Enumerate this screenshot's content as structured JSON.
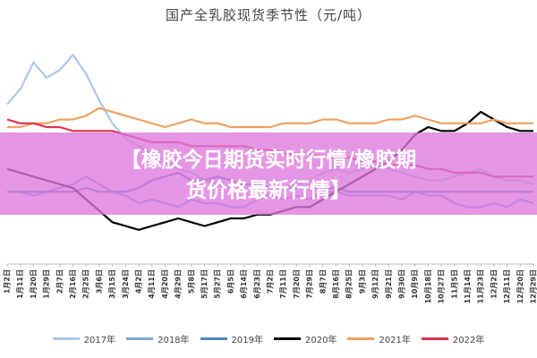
{
  "chart_data": {
    "type": "line",
    "title": "国产全乳胶现货季节性（元/吨）",
    "ylim": [
      10000,
      16000
    ],
    "x_ticks": [
      "1月2日",
      "1月11日",
      "1月20日",
      "1月29日",
      "2月7日",
      "2月16日",
      "2月25日",
      "3月6日",
      "3月15日",
      "3月24日",
      "4月2日",
      "4月11日",
      "4月20日",
      "4月29日",
      "5月8日",
      "5月17日",
      "5月27日",
      "6月5日",
      "6月14日",
      "6月23日",
      "7月2日",
      "7月11日",
      "7月20日",
      "7月29日",
      "8月7日",
      "8月16日",
      "8月25日",
      "9月3日",
      "9月12日",
      "9月21日",
      "9月30日",
      "10月9日",
      "10月18日",
      "10月27日",
      "11月5日",
      "11月14日",
      "11月23日",
      "12月2日",
      "12月11日",
      "12月20日",
      "12月29日"
    ],
    "series": [
      {
        "name": "2017年",
        "color": "#aec7e8",
        "values": [
          14200,
          14600,
          15300,
          14900,
          15100,
          15500,
          15000,
          14300,
          13700,
          13300,
          13100,
          12900,
          12700,
          12500,
          12400,
          12200,
          12100,
          12000,
          12100,
          12100,
          12000,
          12000,
          12100,
          12200,
          12400,
          12500,
          12400,
          12500,
          12600,
          12500,
          12400,
          12300,
          12200,
          12200,
          12300,
          12400,
          12500,
          12300,
          12200,
          12200,
          12100
        ]
      },
      {
        "name": "2018年",
        "color": "#7da7d9",
        "values": [
          11900,
          11900,
          11800,
          11900,
          12000,
          12100,
          12300,
          12100,
          11900,
          11800,
          11600,
          11700,
          11600,
          11500,
          11700,
          11600,
          11600,
          11500,
          11500,
          11700,
          11800,
          11700,
          11800,
          11700,
          11900,
          11900,
          11800,
          11800,
          11800,
          11800,
          11700,
          11900,
          11800,
          11800,
          11600,
          11500,
          11500,
          11600,
          11500,
          11700,
          11600
        ]
      },
      {
        "name": "2019年",
        "color": "#4e86c2",
        "values": [
          11900,
          11900,
          11900,
          11900,
          11900,
          11900,
          12000,
          11900,
          11900,
          11900,
          12000,
          12200,
          12300,
          12400,
          12200,
          12200,
          12300,
          12200,
          12100,
          12100,
          12000,
          12000,
          12000,
          12000,
          12000,
          12000,
          11900,
          11900,
          11900,
          11900,
          11900,
          11900,
          11900,
          11900,
          11900,
          11900,
          11900,
          11900,
          11900,
          11900,
          11900
        ]
      },
      {
        "name": "2020年",
        "color": "#000000",
        "values": [
          12500,
          12400,
          12300,
          12200,
          12100,
          12000,
          11700,
          11400,
          11100,
          11000,
          10900,
          11000,
          11100,
          11200,
          11100,
          11000,
          11100,
          11200,
          11200,
          11300,
          11300,
          11400,
          11500,
          11500,
          11700,
          11900,
          12100,
          12300,
          12500,
          12700,
          13000,
          13400,
          13600,
          13500,
          13500,
          13700,
          14000,
          13800,
          13600,
          13500,
          13500
        ]
      },
      {
        "name": "2021年",
        "color": "#f0a060",
        "values": [
          13600,
          13600,
          13700,
          13700,
          13800,
          13800,
          13900,
          14100,
          14000,
          13900,
          13800,
          13700,
          13600,
          13700,
          13800,
          13700,
          13700,
          13600,
          13600,
          13600,
          13600,
          13700,
          13700,
          13700,
          13800,
          13800,
          13700,
          13700,
          13700,
          13800,
          13800,
          13900,
          13800,
          13700,
          13700,
          13700,
          13700,
          13800,
          13700,
          13700,
          13700
        ]
      },
      {
        "name": "2022年",
        "color": "#e0304a",
        "values": [
          13800,
          13700,
          13700,
          13600,
          13600,
          13500,
          13500,
          13500,
          13500,
          13400,
          13300,
          13200,
          13200,
          13200,
          13100,
          13100,
          13100,
          13100,
          13100,
          13000,
          13000,
          12900,
          12900,
          12900,
          12800,
          12800,
          12800,
          12700,
          12700,
          12600,
          12600,
          12600,
          12500,
          12500,
          12400,
          12400,
          12400,
          12300,
          12300,
          12300,
          12300
        ]
      }
    ]
  },
  "banner": {
    "line1": "【橡胶今日期货实时行情/橡胶期",
    "line2": "货价格最新行情】"
  }
}
